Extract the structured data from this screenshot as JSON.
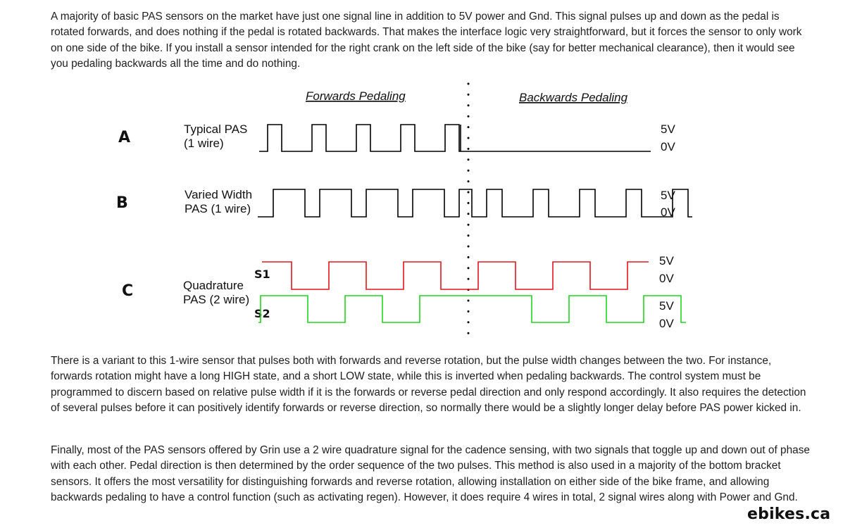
{
  "paragraphs": {
    "intro": "A majority of basic PAS sensors on the market have just one signal line in addition to 5V power and Gnd. This signal pulses up and down as the pedal is rotated forwards, and does nothing if the pedal is rotated backwards. That makes the interface logic very straightforward, but it forces the sensor to only work on one side of the bike. If you install a sensor intended for the right crank on the left side of the bike (say for better mechanical clearance), then it would see you pedaling backwards all the time and do nothing.",
    "variant": "There is a variant to this 1-wire sensor that pulses both with forwards and reverse rotation, but the pulse width changes between the two. For instance, forwards rotation might have a long HIGH state, and a short LOW state, while this is inverted when pedaling backwards. The control system must be programmed to discern based on relative pulse width if it is the forwards or reverse pedal direction and only respond accordingly. It also requires the detection of several pulses before it can positively identify forwards or reverse direction, so normally there would be a slightly longer delay before PAS power kicked in.",
    "quadrature": "Finally, most of the PAS sensors offered by Grin use a 2 wire quadrature signal for the cadence sensing, with two signals that toggle up and down out of phase with each other. Pedal direction is then determined by the order sequence of the two pulses. This method is also used in a majority of the bottom bracket sensors. It offers the most versatility for distinguishing forwards and reverse rotation, allowing installation on either side of the bike frame, and allowing backwards pedaling to have a control function (such as activating regen). However, it does require 4 wires in total, 2 signal wires along with Power and Gnd."
  },
  "diagram": {
    "forwards_heading": "Forwards Pedaling",
    "backwards_heading": "Backwards Pedaling",
    "rows": [
      {
        "letter": "A",
        "label_line1": "Typical PAS",
        "label_line2": "(1 wire)",
        "high": "5V",
        "low": "0V"
      },
      {
        "letter": "B",
        "label_line1": "Varied Width",
        "label_line2": "PAS (1 wire)",
        "high": "5V",
        "low": "0V"
      },
      {
        "letter": "C",
        "label_line1": "Quadrature",
        "label_line2": "PAS (2 wire)",
        "s1": "S1",
        "s2": "S2",
        "s1_high": "5V",
        "s1_low": "0V",
        "s2_high": "5V",
        "s2_low": "0V"
      }
    ],
    "colors": {
      "signal_a": "#000000",
      "signal_b": "#000000",
      "s1": "#e0161e",
      "s2": "#22d322",
      "divider": "#000000"
    }
  },
  "watermark": "ebikes.ca"
}
